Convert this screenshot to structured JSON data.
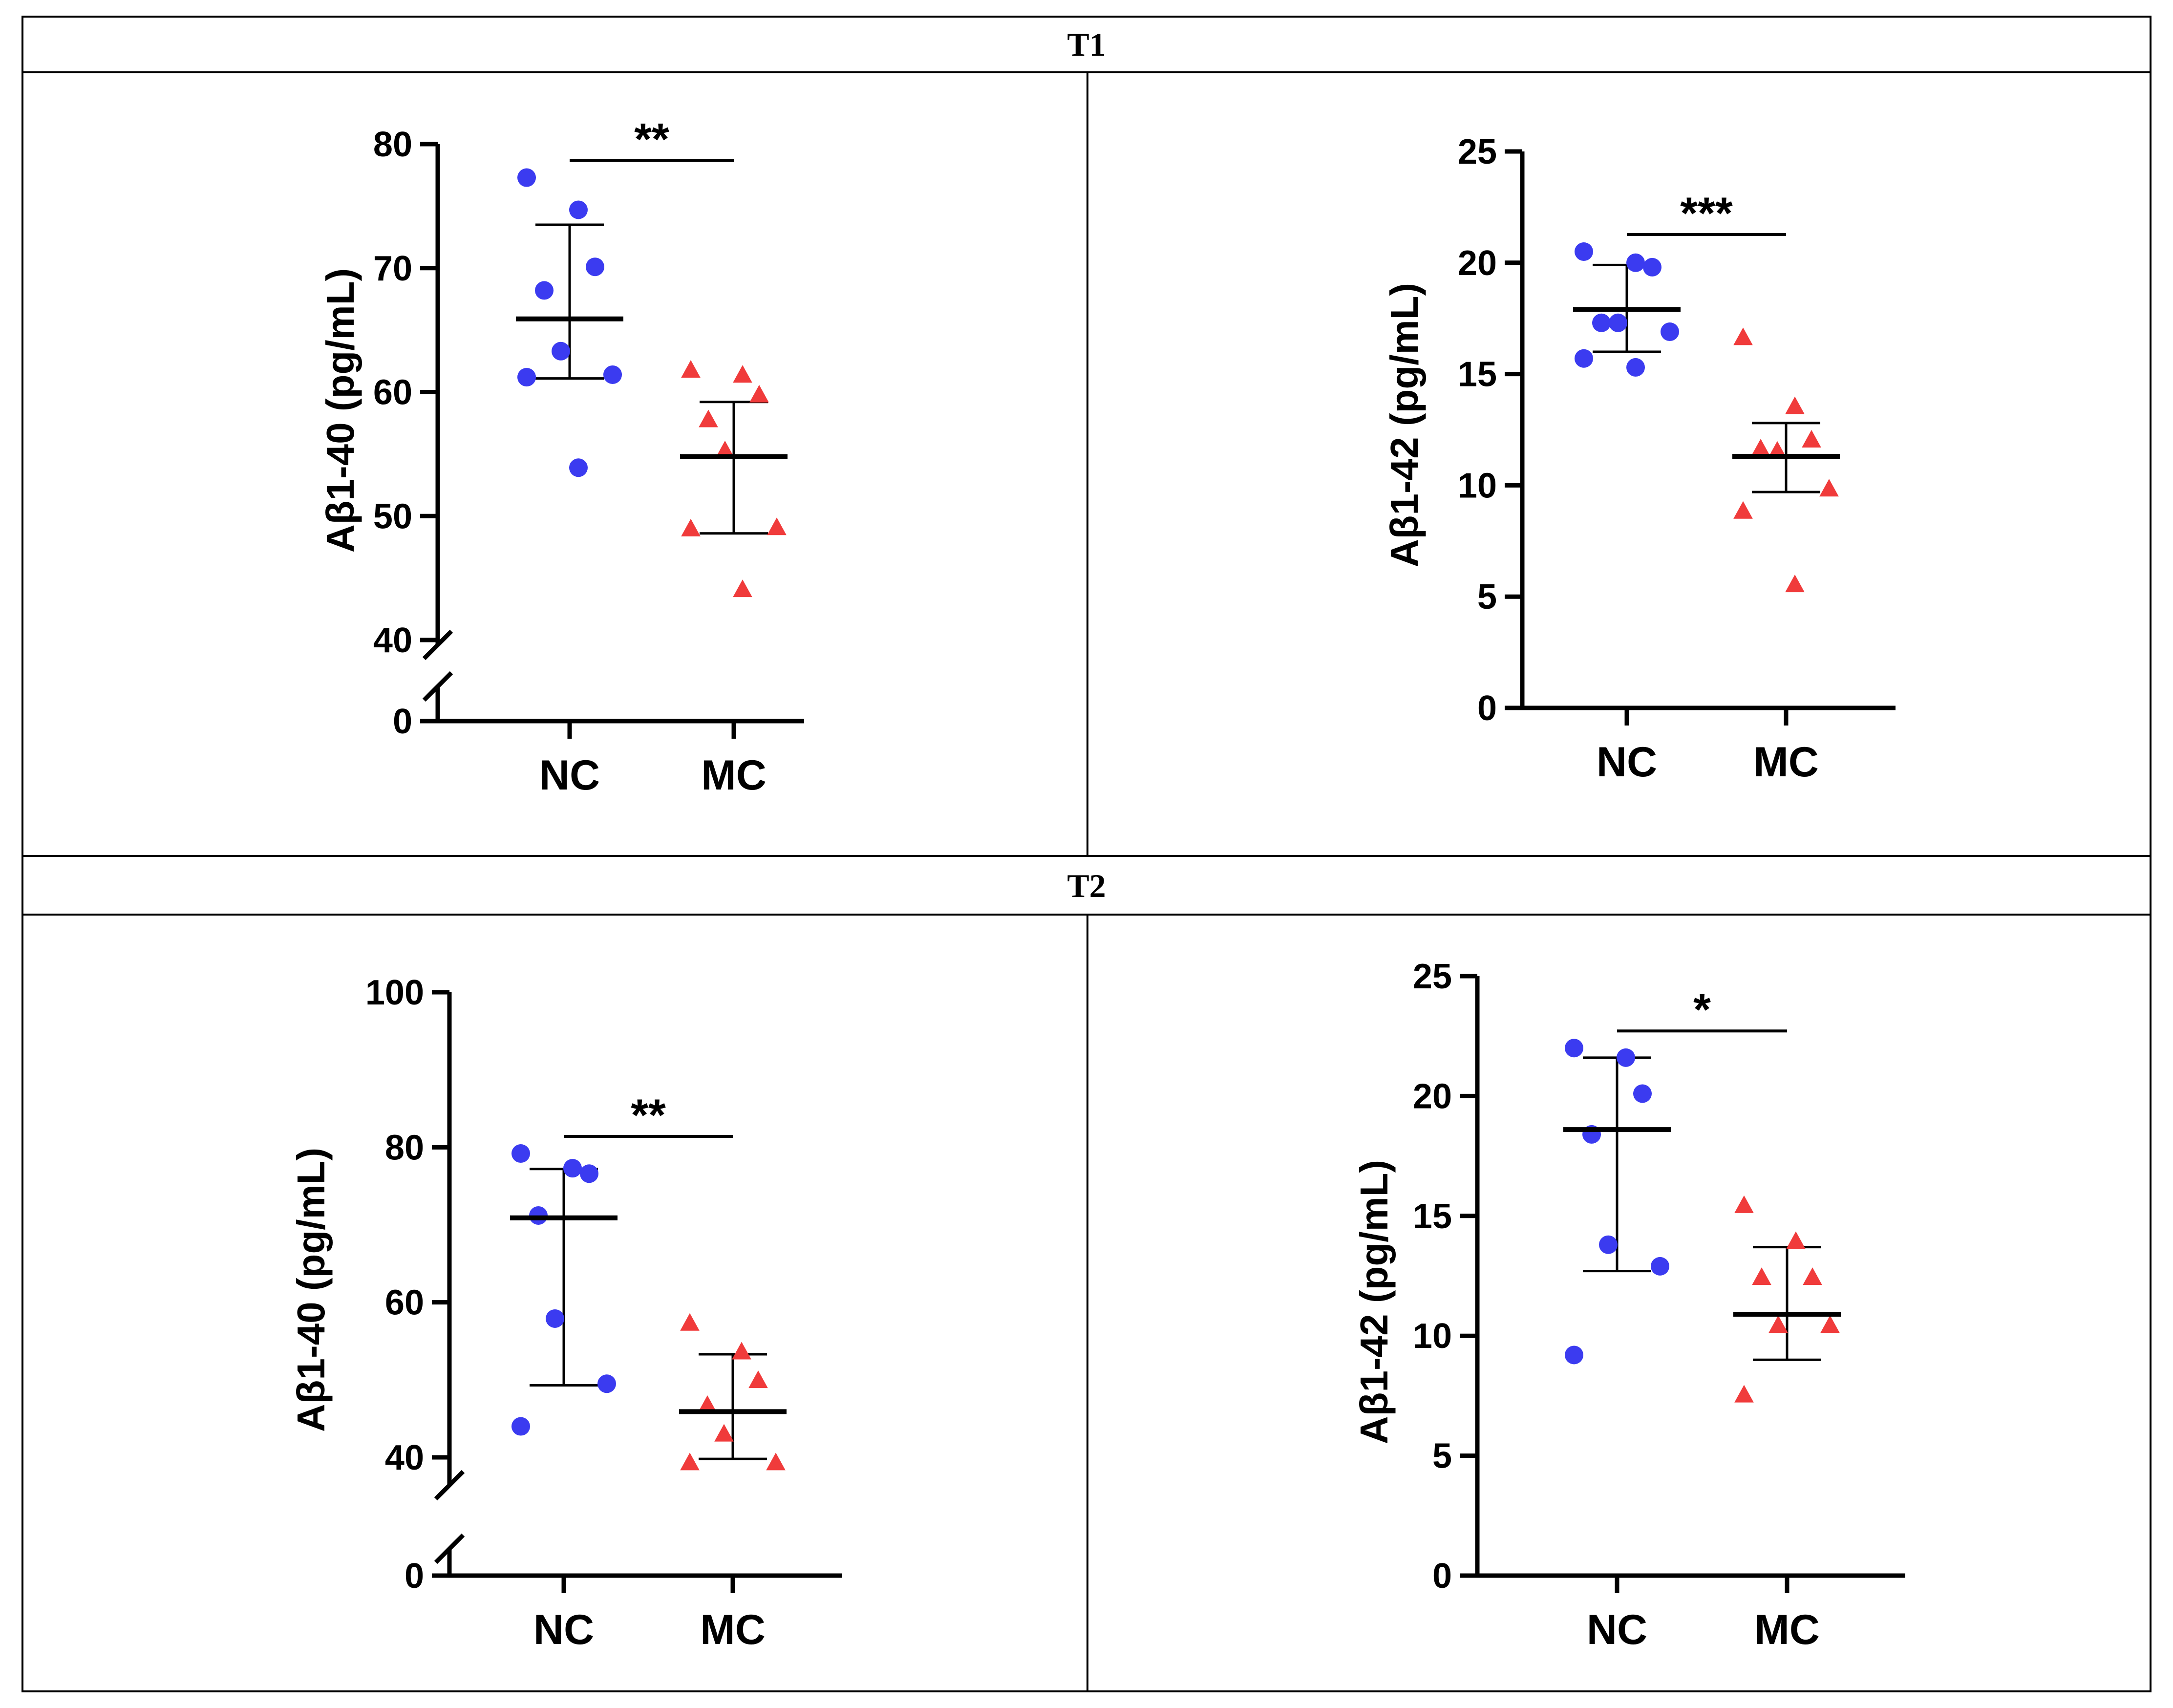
{
  "sections": [
    {
      "title": "T1"
    },
    {
      "title": "T2"
    }
  ],
  "colors": {
    "nc": "#3b3bf0",
    "mc": "#f03b3b",
    "axis": "#000000",
    "grid_border": "#000000"
  },
  "chart_data": [
    {
      "type": "scatter",
      "panel": "T1-left",
      "ylabel": "Aβ1-40 (pg/mL)",
      "categories": [
        "NC",
        "MC"
      ],
      "y_ticks": [
        0,
        40,
        50,
        60,
        70,
        80
      ],
      "axis_break": true,
      "ylim": [
        40,
        80
      ],
      "significance": "**",
      "series": [
        {
          "name": "NC",
          "marker": "circle",
          "values": [
            77.3,
            74.7,
            70.1,
            68.2,
            63.3,
            61.4,
            61.2,
            53.9
          ],
          "mean": 65.9,
          "sd_low": 61.1,
          "sd_high": 73.5
        },
        {
          "name": "MC",
          "marker": "triangle",
          "values": [
            61.7,
            61.3,
            59.7,
            57.7,
            55.2,
            49.0,
            48.9,
            44.0
          ],
          "mean": 54.8,
          "sd_low": 48.6,
          "sd_high": 59.2
        }
      ]
    },
    {
      "type": "scatter",
      "panel": "T1-right",
      "ylabel": "Aβ1-42 (pg/mL)",
      "categories": [
        "NC",
        "MC"
      ],
      "y_ticks": [
        0,
        5,
        10,
        15,
        20,
        25
      ],
      "axis_break": false,
      "ylim": [
        0,
        25
      ],
      "significance": "***",
      "series": [
        {
          "name": "NC",
          "marker": "circle",
          "values": [
            20.5,
            20.0,
            19.8,
            17.3,
            17.3,
            16.9,
            15.7,
            15.3
          ],
          "mean": 17.9,
          "sd_low": 16.0,
          "sd_high": 19.9
        },
        {
          "name": "MC",
          "marker": "triangle",
          "values": [
            16.6,
            13.5,
            12.0,
            11.6,
            11.5,
            9.8,
            8.8,
            5.5
          ],
          "mean": 11.3,
          "sd_low": 9.7,
          "sd_high": 12.8
        }
      ]
    },
    {
      "type": "scatter",
      "panel": "T2-left",
      "ylabel": "Aβ1-40 (pg/mL)",
      "categories": [
        "NC",
        "MC"
      ],
      "y_ticks": [
        0,
        40,
        60,
        80,
        100
      ],
      "axis_break": true,
      "ylim": [
        40,
        100
      ],
      "significance": "**",
      "series": [
        {
          "name": "NC",
          "marker": "circle",
          "values": [
            79.2,
            77.3,
            76.6,
            71.2,
            57.9,
            49.5,
            44.0
          ],
          "mean": 70.9,
          "sd_low": 49.3,
          "sd_high": 77.2
        },
        {
          "name": "MC",
          "marker": "triangle",
          "values": [
            57.2,
            53.5,
            49.8,
            46.6,
            42.9,
            39.2,
            39.2
          ],
          "mean": 45.9,
          "sd_low": 39.8,
          "sd_high": 53.3
        }
      ]
    },
    {
      "type": "scatter",
      "panel": "T2-right",
      "ylabel": "Aβ1-42 (pg/mL)",
      "categories": [
        "NC",
        "MC"
      ],
      "y_ticks": [
        0,
        5,
        10,
        15,
        20,
        25
      ],
      "axis_break": false,
      "ylim": [
        0,
        25
      ],
      "significance": "*",
      "series": [
        {
          "name": "NC",
          "marker": "circle",
          "values": [
            22.0,
            21.6,
            20.1,
            18.4,
            13.8,
            12.9,
            9.2
          ],
          "mean": 18.6,
          "sd_low": 12.7,
          "sd_high": 21.6
        },
        {
          "name": "MC",
          "marker": "triangle",
          "values": [
            15.4,
            13.9,
            12.4,
            12.4,
            10.4,
            10.4,
            7.5
          ],
          "mean": 10.9,
          "sd_low": 9.0,
          "sd_high": 13.7
        }
      ]
    }
  ]
}
